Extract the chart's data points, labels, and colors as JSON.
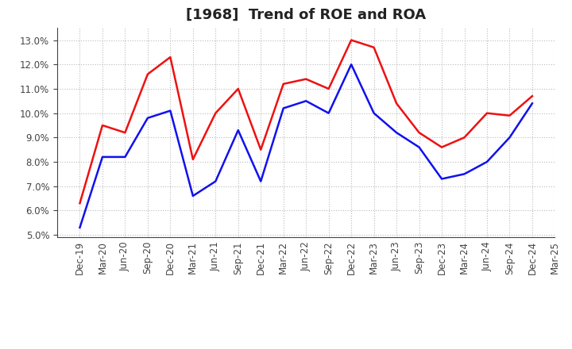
{
  "title": "[1968]  Trend of ROE and ROA",
  "labels": [
    "Dec-19",
    "Mar-20",
    "Jun-20",
    "Sep-20",
    "Dec-20",
    "Mar-21",
    "Jun-21",
    "Sep-21",
    "Dec-21",
    "Mar-22",
    "Jun-22",
    "Sep-22",
    "Dec-22",
    "Mar-23",
    "Jun-23",
    "Sep-23",
    "Dec-23",
    "Mar-24",
    "Jun-24",
    "Sep-24",
    "Dec-24",
    "Mar-25"
  ],
  "roe": [
    6.3,
    9.5,
    9.2,
    11.6,
    12.3,
    8.1,
    10.0,
    11.0,
    8.5,
    11.2,
    11.4,
    11.0,
    13.0,
    12.7,
    10.4,
    9.2,
    8.6,
    9.0,
    10.0,
    9.9,
    10.7,
    null
  ],
  "roa": [
    5.3,
    8.2,
    8.2,
    9.8,
    10.1,
    6.6,
    7.2,
    9.3,
    7.2,
    10.2,
    10.5,
    10.0,
    12.0,
    10.0,
    9.2,
    8.6,
    7.3,
    7.5,
    8.0,
    9.0,
    10.4,
    null
  ],
  "roe_color": "#EE1111",
  "roa_color": "#1111EE",
  "ylim": [
    4.9,
    13.5
  ],
  "yticks": [
    5.0,
    6.0,
    7.0,
    8.0,
    9.0,
    10.0,
    11.0,
    12.0,
    13.0
  ],
  "background_color": "#ffffff",
  "grid_color": "#bbbbbb",
  "title_fontsize": 13,
  "legend_fontsize": 10,
  "tick_fontsize": 8.5,
  "linewidth": 1.8
}
